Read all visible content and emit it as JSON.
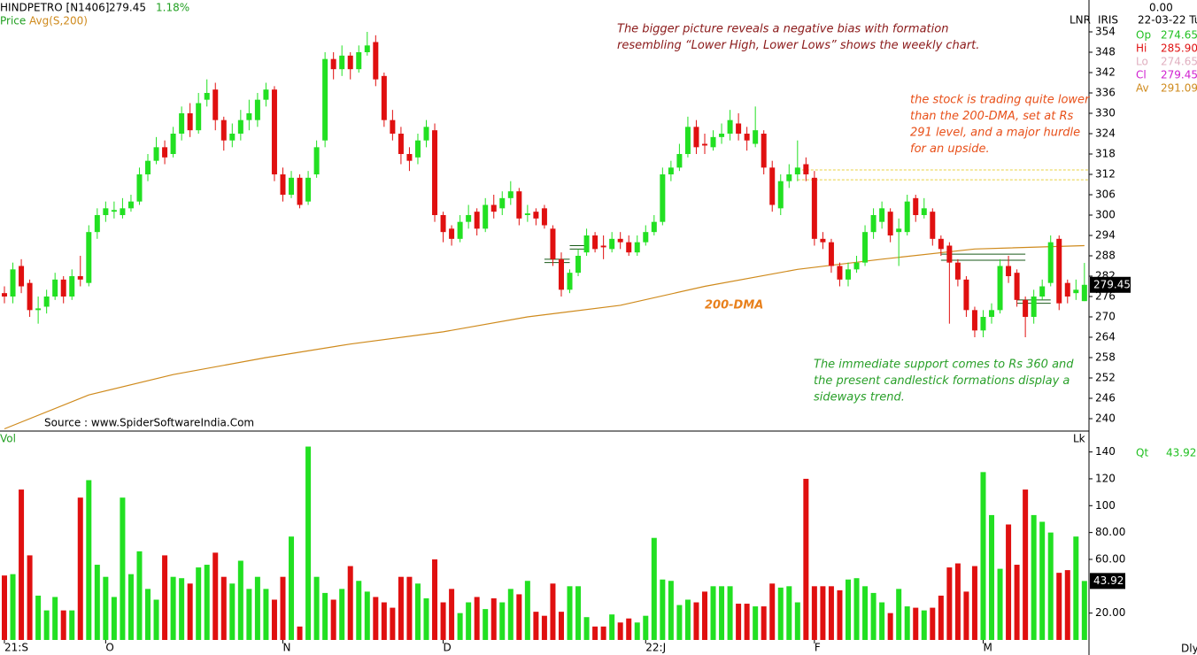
{
  "chart_data": {
    "type": "candlestick",
    "symbol": "HINDPETRO [N1406]",
    "last_price": "279.45",
    "change_pct": "1.18%",
    "price_label": "Price",
    "avg_label": "Avg(S,200)",
    "up_color": "#22e022",
    "down_color": "#e01010",
    "open": [
      277,
      276,
      285,
      280,
      272,
      273,
      276,
      281,
      276,
      282,
      280,
      295,
      300,
      301,
      300,
      302,
      304,
      312,
      316,
      320,
      318,
      324,
      330,
      325,
      334,
      337,
      328,
      322,
      324,
      328,
      328,
      334,
      337,
      312,
      306,
      311,
      304,
      312,
      322,
      346,
      343,
      347,
      343,
      348,
      351,
      341,
      328,
      324,
      318,
      317,
      322,
      325,
      300,
      296,
      293,
      298,
      301,
      296,
      303,
      302,
      305,
      307,
      300,
      301,
      302,
      296,
      287,
      278,
      283,
      289,
      294,
      291,
      290,
      293,
      292,
      289,
      292,
      295,
      298,
      312,
      314,
      318,
      326,
      321,
      320,
      323,
      324,
      327,
      324,
      321,
      324,
      314,
      302,
      310,
      312,
      315,
      311,
      293,
      292,
      285,
      281,
      284,
      286,
      295,
      298,
      301,
      295,
      295,
      305,
      300,
      301,
      293,
      291,
      286,
      281,
      272,
      266,
      270,
      272,
      285,
      283,
      275,
      270,
      276,
      280,
      293,
      280,
      277,
      274.65
    ],
    "high": [
      279,
      286,
      287,
      281,
      276,
      278,
      283,
      282,
      284,
      288,
      297,
      302,
      304,
      304,
      305,
      306,
      314,
      318,
      323,
      322,
      326,
      332,
      333,
      336,
      340,
      339,
      329,
      327,
      331,
      334,
      336,
      339,
      338,
      314,
      313,
      312,
      313,
      322,
      348,
      348,
      350,
      348,
      350,
      354,
      353,
      342,
      331,
      326,
      320,
      324,
      328,
      327,
      301,
      297,
      300,
      303,
      302,
      305,
      306,
      307,
      310,
      308,
      303,
      302,
      303,
      297,
      289,
      284,
      290,
      296,
      295,
      294,
      295,
      295,
      294,
      294,
      297,
      300,
      314,
      316,
      321,
      329,
      328,
      324,
      325,
      327,
      331,
      330,
      326,
      332,
      325,
      316,
      312,
      315,
      322,
      317,
      313,
      295,
      293,
      286,
      286,
      288,
      297,
      302,
      304,
      302,
      299,
      306,
      306,
      305,
      302,
      294,
      292,
      287,
      282,
      273,
      272,
      274,
      287,
      288,
      284,
      276,
      278,
      281,
      294,
      294,
      281,
      281,
      285.9
    ],
    "low": [
      274,
      274,
      277,
      270,
      268,
      271,
      275,
      274,
      275,
      279,
      279,
      293,
      298,
      299,
      299,
      301,
      303,
      310,
      315,
      315,
      317,
      322,
      323,
      324,
      332,
      325,
      319,
      320,
      322,
      325,
      326,
      332,
      310,
      304,
      305,
      302,
      303,
      311,
      320,
      340,
      341,
      340,
      342,
      347,
      338,
      326,
      322,
      315,
      313,
      315,
      320,
      298,
      292,
      291,
      292,
      296,
      294,
      295,
      299,
      300,
      303,
      297,
      298,
      297,
      296,
      285,
      276,
      277,
      282,
      288,
      289,
      287,
      289,
      290,
      288,
      288,
      291,
      294,
      297,
      310,
      313,
      317,
      318,
      318,
      319,
      321,
      322,
      322,
      319,
      320,
      312,
      301,
      300,
      308,
      310,
      310,
      291,
      290,
      283,
      279,
      279,
      283,
      285,
      293,
      296,
      292,
      285,
      294,
      298,
      299,
      291,
      288,
      268,
      279,
      270,
      264,
      264,
      268,
      271,
      280,
      273,
      264,
      268,
      275,
      279,
      272,
      274,
      275,
      274.65
    ],
    "close": [
      276,
      284,
      279,
      272,
      272.5,
      276,
      281,
      276,
      282,
      281,
      295,
      300,
      302,
      301.5,
      302,
      304,
      312,
      316,
      320,
      317,
      324,
      330,
      325,
      333,
      336,
      328,
      322,
      324,
      328,
      330,
      334,
      337,
      312,
      306,
      311,
      303,
      311,
      320,
      346,
      343,
      347,
      343,
      348,
      350,
      340,
      328,
      324,
      318,
      316,
      322,
      326,
      300,
      295,
      293,
      298,
      300,
      296,
      303,
      301,
      305,
      307,
      299,
      300.5,
      299,
      297,
      287,
      278,
      283,
      288,
      294,
      290,
      290.5,
      293,
      292,
      289,
      292,
      295,
      298,
      312,
      314,
      318,
      326,
      320,
      320.5,
      323,
      324,
      328,
      324,
      322,
      325,
      314,
      303,
      310,
      312,
      314,
      312,
      293,
      292,
      285,
      281,
      284,
      286,
      295,
      300,
      302,
      294,
      296,
      304,
      300,
      302,
      293,
      290,
      286,
      281,
      272,
      266,
      270,
      272,
      285,
      282,
      275,
      270,
      276,
      279,
      292,
      274,
      276,
      278,
      279.45
    ],
    "volume": [
      48,
      49,
      112,
      63,
      33,
      22,
      32,
      22,
      22,
      106,
      119,
      56,
      47,
      32,
      106,
      49,
      66,
      38,
      30,
      63,
      47,
      46,
      42,
      54,
      56,
      65,
      47,
      42,
      59,
      38,
      47,
      38,
      30,
      47,
      77,
      10,
      144,
      47,
      35,
      30,
      38,
      55,
      44,
      36,
      32,
      28,
      24,
      47,
      47,
      42,
      31,
      60,
      28,
      38,
      20,
      28,
      32,
      23,
      31,
      28,
      38,
      34,
      44,
      21,
      18,
      42,
      21,
      40,
      40,
      17,
      10,
      10,
      19,
      13,
      16,
      13,
      18,
      76,
      45,
      44,
      26,
      30,
      28,
      36,
      40,
      40,
      40,
      27,
      27,
      25,
      25,
      42,
      39,
      40,
      28,
      120,
      40,
      40,
      40,
      37,
      45,
      46,
      40,
      35,
      28,
      20,
      38,
      25,
      24,
      22,
      24,
      33,
      54,
      57,
      36,
      55,
      125,
      93,
      53,
      86,
      56,
      112,
      93,
      88,
      80,
      50,
      52,
      77,
      43.92
    ],
    "average": {
      "name": "200-DMA",
      "color": "#cf8a1c",
      "x": [
        0,
        10,
        20,
        31,
        41,
        52,
        62,
        73,
        83,
        94,
        104,
        115,
        128
      ],
      "values": [
        237,
        247,
        253,
        258,
        262,
        265.6,
        270,
        273.4,
        279,
        284,
        287,
        290,
        291
      ]
    },
    "dashed_levels": {
      "color": "#e8d040",
      "values": [
        313.3,
        310.4
      ],
      "from": 94,
      "to": 128
    },
    "support_levels": [
      {
        "values": [
          287,
          286
        ],
        "from": 64,
        "to": 67
      },
      {
        "values": [
          291,
          290
        ],
        "from": 67,
        "to": 69
      },
      {
        "values": [
          288.5,
          286.7
        ],
        "from": 111,
        "to": 121
      },
      {
        "values": [
          275,
          274
        ],
        "from": 120,
        "to": 124
      }
    ],
    "ylim": [
      240,
      354
    ],
    "yticks": [
      240,
      246,
      252,
      258,
      264,
      270,
      276,
      282,
      288,
      294,
      300,
      306,
      312,
      318,
      324,
      330,
      336,
      342,
      348,
      354
    ],
    "vol_label": "Vol",
    "vol_unit": "Lk",
    "vlim": [
      0,
      140
    ],
    "vticks": [
      {
        "value": 20,
        "label": "20.00"
      },
      {
        "value": 60,
        "label": "60.00"
      },
      {
        "value": 80,
        "label": "80.00"
      },
      100,
      120,
      140
    ],
    "xlabels": [
      {
        "index": 0,
        "label": "21:S"
      },
      {
        "index": 12,
        "label": "O"
      },
      {
        "index": 33,
        "label": "N"
      },
      {
        "index": 52,
        "label": "D"
      },
      {
        "index": 76,
        "label": "22:J"
      },
      {
        "index": 96,
        "label": "F"
      },
      {
        "index": 116,
        "label": "M"
      }
    ],
    "period": "Dly",
    "source": "Source : www.SpiderSoftwareIndia.Com",
    "panel": {
      "lnr": "LNR",
      "iris": "IRIS",
      "zero": "0.00",
      "date": "22-03-22 Tu",
      "items": [
        {
          "label": "Op",
          "value": "274.65",
          "color": "#22c022"
        },
        {
          "label": "Hi",
          "value": "285.90",
          "color": "#e01010"
        },
        {
          "label": "Lo",
          "value": "274.65",
          "color": "#e0b0c0"
        },
        {
          "label": "Cl",
          "value": "279.45",
          "color": "#d020d0"
        },
        {
          "label": "Av",
          "value": "291.09",
          "color": "#cf8a1c"
        }
      ],
      "qt_label": "Qt",
      "qt_value": "43.92"
    },
    "annotations": [
      {
        "lines": [
          "The bigger picture reveals a negative bias with formation",
          "resembling “Lower High, Lower Lows” shows the weekly chart."
        ],
        "color": "#8b1a1a"
      },
      {
        "lines": [
          "the stock is trading quite lower",
          "than the 200-DMA, set at Rs",
          "291 level, and a major hurdle",
          "for an upside."
        ],
        "color": "#e8501a"
      },
      {
        "lines": [
          "The immediate support comes to Rs 360 and",
          "the present candlestick formations display a",
          "sideways trend."
        ],
        "color": "#2aa02a"
      }
    ]
  }
}
